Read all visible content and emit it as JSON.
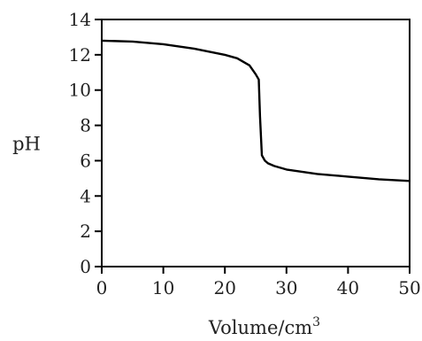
{
  "chart_data": {
    "type": "line",
    "title": "",
    "xlabel": "Volume/cm",
    "xlabel_superscript": "3",
    "ylabel": "pH",
    "xlim": [
      0,
      50
    ],
    "ylim": [
      0,
      14
    ],
    "xticks": [
      0,
      10,
      20,
      30,
      40,
      50
    ],
    "yticks": [
      0,
      2,
      4,
      6,
      8,
      10,
      12,
      14
    ],
    "grid": false,
    "legend": "none",
    "line_color": "#000000",
    "series": [
      {
        "x": [
          0,
          5,
          10,
          15,
          20,
          22,
          24,
          25,
          25.5,
          25.7,
          26,
          26.5,
          27,
          28,
          30,
          35,
          40,
          45,
          50
        ],
        "y": [
          12.8,
          12.75,
          12.6,
          12.35,
          12.0,
          11.8,
          11.4,
          10.9,
          10.6,
          8.5,
          6.3,
          6.0,
          5.85,
          5.7,
          5.5,
          5.25,
          5.1,
          4.95,
          4.85
        ]
      }
    ]
  }
}
